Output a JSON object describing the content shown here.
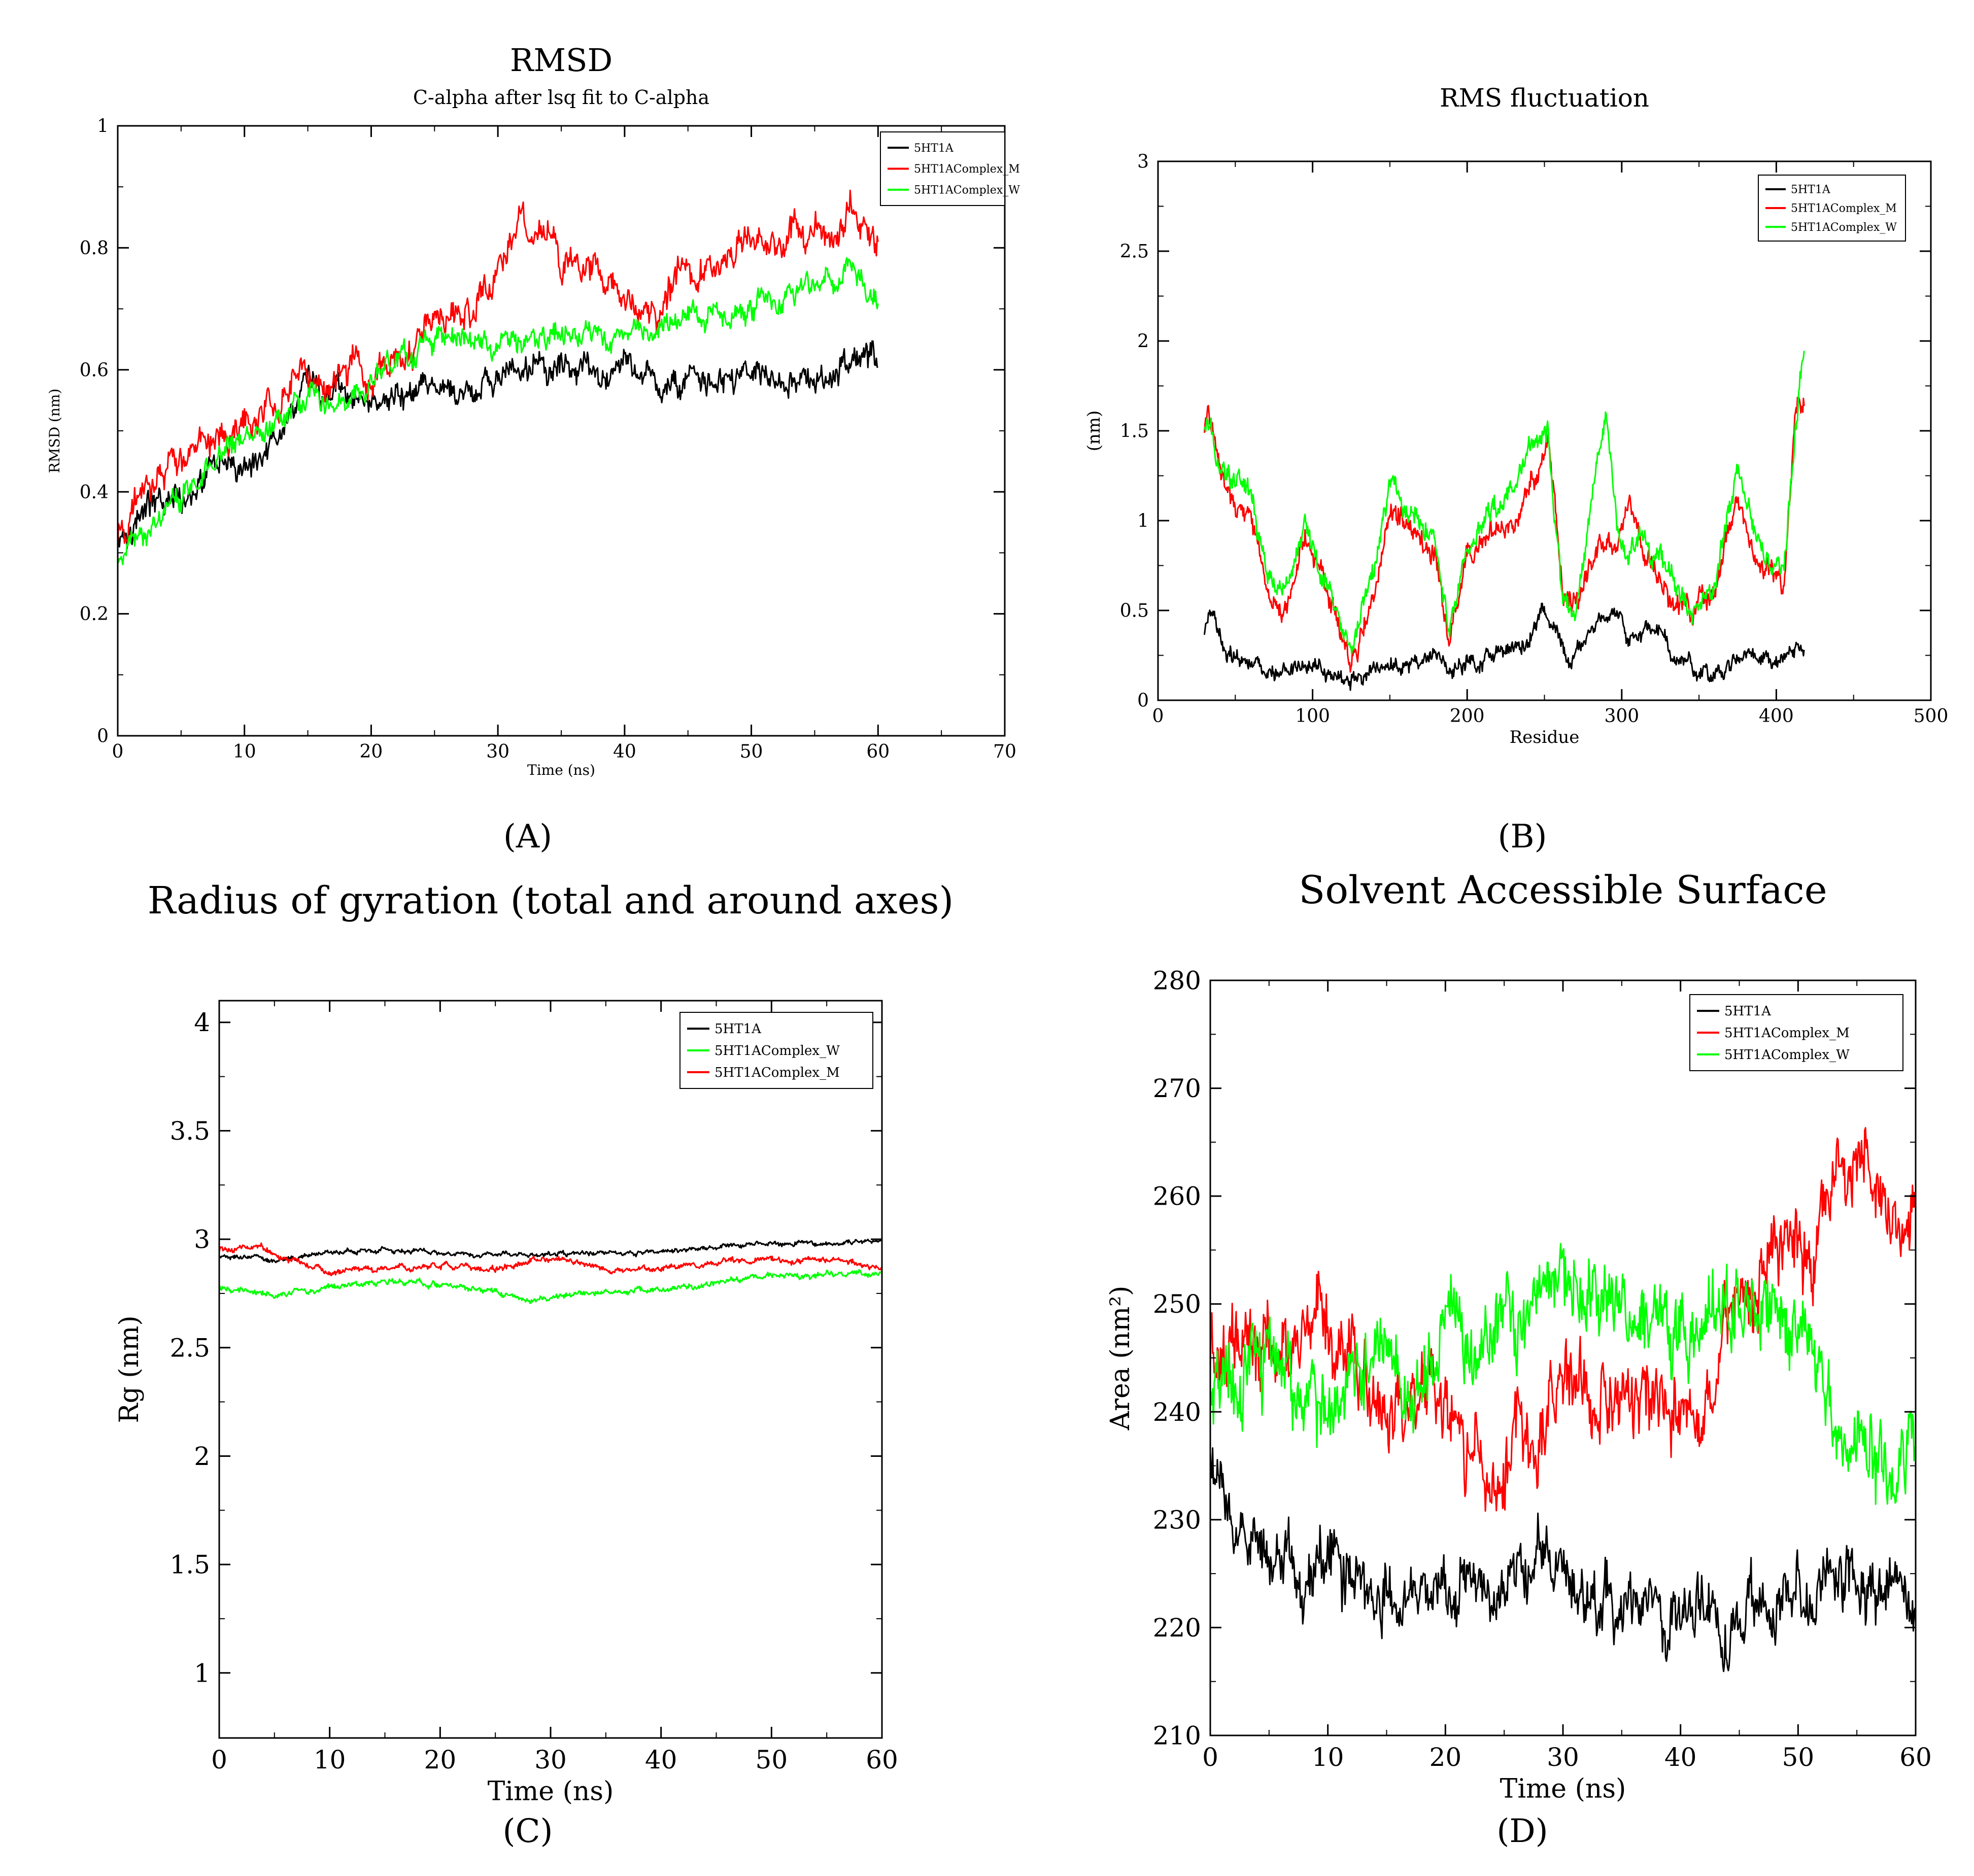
{
  "figure": {
    "labels": [
      "(A)",
      "(B)",
      "(C)",
      "(D)"
    ]
  },
  "colors": {
    "5HT1A": "#000000",
    "5HT1AComplex_M": "#ff0000",
    "5HT1AComplex_W": "#00ff00"
  },
  "chart_data": [
    {
      "id": "A",
      "type": "line",
      "title": "RMSD",
      "subtitle": "C-alpha after lsq fit to C-alpha",
      "xlabel": "Time (ns)",
      "ylabel": "RMSD (nm)",
      "xlim": [
        0,
        70
      ],
      "ylim": [
        0,
        1
      ],
      "xticks": [
        0,
        10,
        20,
        30,
        40,
        50,
        60,
        70
      ],
      "yticks": [
        0,
        0.2,
        0.4,
        0.6,
        0.8,
        1
      ],
      "legend": "top-right",
      "series": [
        {
          "name": "5HT1A",
          "color": "#000000",
          "noise": 0.025,
          "x": [
            0,
            2,
            5,
            8,
            10,
            12,
            15,
            18,
            20,
            25,
            28,
            30,
            35,
            40,
            45,
            50,
            55,
            58,
            60
          ],
          "y": [
            0.33,
            0.37,
            0.4,
            0.43,
            0.45,
            0.48,
            0.58,
            0.55,
            0.54,
            0.56,
            0.56,
            0.59,
            0.6,
            0.6,
            0.58,
            0.58,
            0.58,
            0.62,
            0.62
          ]
        },
        {
          "name": "5HT1AComplex_M",
          "color": "#ff0000",
          "noise": 0.03,
          "x": [
            0,
            2,
            5,
            8,
            10,
            12,
            15,
            18,
            20,
            22,
            25,
            28,
            30,
            32,
            35,
            38,
            40,
            42,
            45,
            48,
            50,
            52,
            54,
            56,
            58,
            60
          ],
          "y": [
            0.32,
            0.4,
            0.45,
            0.5,
            0.5,
            0.55,
            0.58,
            0.6,
            0.58,
            0.62,
            0.68,
            0.7,
            0.76,
            0.85,
            0.78,
            0.76,
            0.72,
            0.7,
            0.76,
            0.78,
            0.8,
            0.8,
            0.84,
            0.82,
            0.86,
            0.82
          ]
        },
        {
          "name": "5HT1AComplex_W",
          "color": "#00ff00",
          "noise": 0.022,
          "x": [
            0,
            2,
            5,
            8,
            10,
            15,
            20,
            25,
            30,
            35,
            40,
            45,
            50,
            55,
            58,
            60
          ],
          "y": [
            0.28,
            0.33,
            0.38,
            0.45,
            0.5,
            0.54,
            0.58,
            0.66,
            0.64,
            0.66,
            0.66,
            0.68,
            0.7,
            0.74,
            0.77,
            0.71
          ]
        }
      ]
    },
    {
      "id": "B",
      "type": "line",
      "title": "RMS fluctuation",
      "xlabel": "Residue",
      "ylabel": "(nm)",
      "xlim": [
        0,
        500
      ],
      "ylim": [
        0,
        3
      ],
      "xticks": [
        0,
        100,
        200,
        300,
        400,
        500
      ],
      "yticks": [
        0,
        0.5,
        1,
        1.5,
        2,
        2.5,
        3
      ],
      "legend": "top-right",
      "series": [
        {
          "name": "5HT1A",
          "color": "#000000",
          "noise": 0.05,
          "x": [
            30,
            35,
            45,
            55,
            70,
            90,
            110,
            125,
            140,
            160,
            180,
            190,
            200,
            220,
            240,
            248,
            258,
            265,
            280,
            295,
            305,
            320,
            335,
            345,
            360,
            375,
            390,
            400,
            410,
            418
          ],
          "y": [
            0.4,
            0.45,
            0.3,
            0.25,
            0.15,
            0.2,
            0.18,
            0.12,
            0.18,
            0.2,
            0.25,
            0.15,
            0.22,
            0.28,
            0.35,
            0.5,
            0.35,
            0.2,
            0.4,
            0.5,
            0.35,
            0.4,
            0.25,
            0.2,
            0.15,
            0.25,
            0.2,
            0.18,
            0.25,
            0.3
          ]
        },
        {
          "name": "5HT1AComplex_M",
          "color": "#ff0000",
          "noise": 0.07,
          "x": [
            30,
            32,
            40,
            50,
            60,
            70,
            80,
            95,
            110,
            125,
            140,
            150,
            165,
            180,
            188,
            200,
            215,
            230,
            245,
            252,
            262,
            270,
            285,
            295,
            305,
            315,
            330,
            345,
            360,
            375,
            385,
            395,
            405,
            412,
            418
          ],
          "y": [
            1.5,
            1.65,
            1.3,
            1.1,
            1.0,
            0.6,
            0.5,
            0.9,
            0.6,
            0.2,
            0.6,
            1.1,
            0.9,
            0.8,
            0.3,
            0.8,
            0.9,
            1.0,
            1.3,
            1.5,
            0.6,
            0.5,
            0.9,
            0.85,
            1.2,
            0.8,
            0.6,
            0.5,
            0.6,
            1.2,
            0.8,
            0.7,
            0.6,
            1.6,
            1.7
          ]
        },
        {
          "name": "5HT1AComplex_W",
          "color": "#00ff00",
          "noise": 0.07,
          "x": [
            30,
            32,
            40,
            50,
            60,
            70,
            80,
            95,
            110,
            125,
            140,
            150,
            165,
            180,
            188,
            200,
            215,
            230,
            245,
            252,
            262,
            270,
            280,
            290,
            300,
            315,
            330,
            345,
            360,
            375,
            385,
            395,
            405,
            412,
            418
          ],
          "y": [
            1.55,
            1.6,
            1.3,
            1.2,
            1.2,
            0.7,
            0.6,
            0.95,
            0.6,
            0.3,
            0.7,
            1.2,
            1.0,
            0.9,
            0.4,
            0.85,
            1.0,
            1.15,
            1.5,
            1.55,
            0.5,
            0.5,
            1.0,
            1.6,
            0.8,
            0.9,
            0.7,
            0.5,
            0.65,
            1.3,
            0.9,
            0.75,
            0.75,
            1.5,
            2.0
          ]
        }
      ]
    },
    {
      "id": "C",
      "type": "line",
      "title": "Radius of gyration (total and around axes)",
      "xlabel": "Time (ns)",
      "ylabel": "Rg (nm)",
      "xlim": [
        0,
        60
      ],
      "ylim": [
        0.7,
        4.1
      ],
      "xticks": [
        0,
        10,
        20,
        30,
        40,
        50,
        60
      ],
      "yticks": [
        1,
        1.5,
        2,
        2.5,
        3,
        3.5,
        4
      ],
      "legend": "top-right",
      "series": [
        {
          "name": "5HT1A",
          "color": "#000000",
          "noise": 0.012,
          "x": [
            0,
            5,
            10,
            15,
            20,
            25,
            30,
            35,
            40,
            45,
            50,
            55,
            60
          ],
          "y": [
            2.92,
            2.9,
            2.94,
            2.95,
            2.94,
            2.93,
            2.93,
            2.93,
            2.94,
            2.96,
            2.98,
            2.98,
            2.99
          ]
        },
        {
          "name": "5HT1AComplex_W",
          "color": "#00ff00",
          "noise": 0.015,
          "x": [
            0,
            5,
            10,
            15,
            20,
            25,
            28,
            30,
            35,
            40,
            45,
            50,
            55,
            60
          ],
          "y": [
            2.78,
            2.74,
            2.78,
            2.8,
            2.79,
            2.76,
            2.72,
            2.74,
            2.75,
            2.77,
            2.8,
            2.83,
            2.84,
            2.84
          ]
        },
        {
          "name": "5HT1AComplex_M",
          "color": "#ff0000",
          "noise": 0.015,
          "x": [
            0,
            3,
            5,
            8,
            10,
            15,
            20,
            25,
            30,
            35,
            40,
            45,
            50,
            55,
            60
          ],
          "y": [
            2.95,
            2.98,
            2.93,
            2.88,
            2.85,
            2.87,
            2.88,
            2.86,
            2.92,
            2.86,
            2.86,
            2.89,
            2.91,
            2.9,
            2.87
          ]
        }
      ]
    },
    {
      "id": "D",
      "type": "line",
      "title": "Solvent Accessible Surface",
      "xlabel": "Time (ns)",
      "ylabel": "Area (nm²)",
      "xlim": [
        0,
        60
      ],
      "ylim": [
        210,
        280
      ],
      "xticks": [
        0,
        10,
        20,
        30,
        40,
        50,
        60
      ],
      "yticks": [
        210,
        220,
        230,
        240,
        250,
        260,
        270,
        280
      ],
      "legend": "top-right",
      "series": [
        {
          "name": "5HT1A",
          "color": "#000000",
          "noise": 3.2,
          "x": [
            0,
            2,
            5,
            8,
            10,
            12,
            15,
            20,
            25,
            30,
            35,
            40,
            45,
            50,
            55,
            60
          ],
          "y": [
            235,
            229,
            228,
            224,
            228,
            225,
            223,
            223,
            225,
            225,
            221,
            222,
            220,
            223,
            224,
            222
          ]
        },
        {
          "name": "5HT1AComplex_M",
          "color": "#ff0000",
          "noise": 4,
          "x": [
            0,
            3,
            5,
            8,
            10,
            12,
            15,
            18,
            20,
            22,
            25,
            28,
            30,
            33,
            35,
            38,
            40,
            43,
            45,
            48,
            50,
            53,
            55,
            58,
            60
          ],
          "y": [
            244,
            245,
            247,
            248,
            247,
            244,
            238,
            243,
            240,
            236,
            236,
            238,
            245,
            242,
            241,
            240,
            240,
            245,
            250,
            255,
            254,
            260,
            263,
            258,
            258
          ]
        },
        {
          "name": "5HT1AComplex_W",
          "color": "#00ff00",
          "noise": 4,
          "x": [
            0,
            3,
            5,
            8,
            10,
            12,
            15,
            18,
            20,
            25,
            30,
            33,
            35,
            40,
            45,
            48,
            50,
            53,
            55,
            58,
            60
          ],
          "y": [
            240,
            244,
            245,
            241,
            238,
            244,
            245,
            243,
            246,
            250,
            252,
            251,
            248,
            247,
            251,
            252,
            247,
            240,
            237,
            236,
            234
          ]
        }
      ]
    }
  ]
}
